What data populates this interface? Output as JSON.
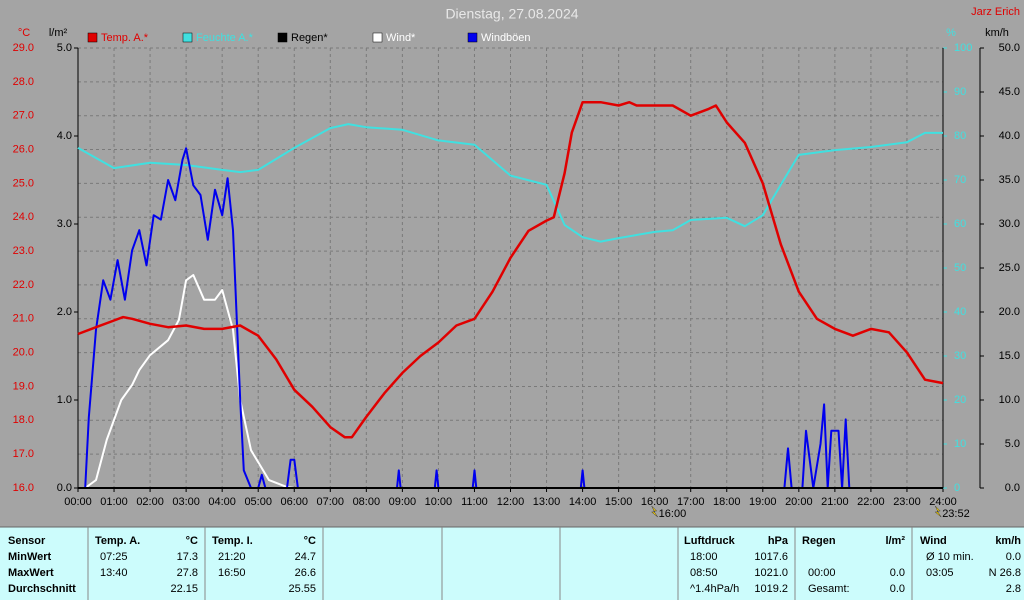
{
  "chart_data": {
    "type": "line",
    "title": "Dienstag, 27.08.2024",
    "author": "Jarz Erich",
    "ylabel": "°C",
    "y2label": "l/m²",
    "y3label": "%",
    "y4label": "km/h",
    "xlim": [
      0,
      24
    ],
    "xticks": [
      {
        "value": 0,
        "label": "00:00"
      },
      {
        "value": 1,
        "label": "01:00"
      },
      {
        "value": 2,
        "label": "02:00"
      },
      {
        "value": 3,
        "label": "03:00"
      },
      {
        "value": 4,
        "label": "04:00"
      },
      {
        "value": 5,
        "label": "05:00"
      },
      {
        "value": 6,
        "label": "06:00"
      },
      {
        "value": 7,
        "label": "07:00"
      },
      {
        "value": 8,
        "label": "08:00"
      },
      {
        "value": 9,
        "label": "09:00"
      },
      {
        "value": 10,
        "label": "10:00"
      },
      {
        "value": 11,
        "label": "11:00"
      },
      {
        "value": 12,
        "label": "12:00"
      },
      {
        "value": 13,
        "label": "13:00"
      },
      {
        "value": 14,
        "label": "14:00"
      },
      {
        "value": 15,
        "label": "15:00"
      },
      {
        "value": 16,
        "label": "16:00"
      },
      {
        "value": 17,
        "label": "17:00"
      },
      {
        "value": 18,
        "label": "18:00"
      },
      {
        "value": 19,
        "label": "19:00"
      },
      {
        "value": 20,
        "label": "20:00"
      },
      {
        "value": 21,
        "label": "21:00"
      },
      {
        "value": 22,
        "label": "22:00"
      },
      {
        "value": 23,
        "label": "23:00"
      },
      {
        "value": 24,
        "label": "24:00"
      }
    ],
    "ylim": [
      16,
      29
    ],
    "yticks": [
      {
        "value": 16,
        "label": "16.0"
      },
      {
        "value": 17,
        "label": "17.0"
      },
      {
        "value": 18,
        "label": "18.0"
      },
      {
        "value": 19,
        "label": "19.0"
      },
      {
        "value": 20,
        "label": "20.0"
      },
      {
        "value": 21,
        "label": "21.0"
      },
      {
        "value": 22,
        "label": "22.0"
      },
      {
        "value": 23,
        "label": "23.0"
      },
      {
        "value": 24,
        "label": "24.0"
      },
      {
        "value": 25,
        "label": "25.0"
      },
      {
        "value": 26,
        "label": "26.0"
      },
      {
        "value": 27,
        "label": "27.0"
      },
      {
        "value": 28,
        "label": "28.0"
      },
      {
        "value": 29,
        "label": "29.0"
      }
    ],
    "y2lim": [
      0,
      5
    ],
    "y2ticks": [
      {
        "value": 0,
        "label": "0.0"
      },
      {
        "value": 1,
        "label": "1.0"
      },
      {
        "value": 2,
        "label": "2.0"
      },
      {
        "value": 3,
        "label": "3.0"
      },
      {
        "value": 4,
        "label": "4.0"
      },
      {
        "value": 5,
        "label": "5.0"
      }
    ],
    "y3lim": [
      0,
      100
    ],
    "y3ticks": [
      0,
      10,
      20,
      30,
      40,
      50,
      60,
      70,
      80,
      90,
      100
    ],
    "y4lim": [
      0,
      50
    ],
    "y4ticks": [
      {
        "value": 0,
        "label": "0.0"
      },
      {
        "value": 5,
        "label": "5.0"
      },
      {
        "value": 10,
        "label": "10.0"
      },
      {
        "value": 15,
        "label": "15.0"
      },
      {
        "value": 20,
        "label": "20.0"
      },
      {
        "value": 25,
        "label": "25.0"
      },
      {
        "value": 30,
        "label": "30.0"
      },
      {
        "value": 35,
        "label": "35.0"
      },
      {
        "value": 40,
        "label": "40.0"
      },
      {
        "value": 45,
        "label": "45.0"
      },
      {
        "value": 50,
        "label": "50.0"
      }
    ],
    "grid": true,
    "series": [
      {
        "name": "Temp. A.*",
        "color": "#e00000",
        "text_color": "#e00000",
        "axis": "y",
        "x": [
          0,
          0.5,
          1,
          1.25,
          1.5,
          2,
          2.5,
          3,
          3.5,
          4,
          4.5,
          5,
          5.5,
          6,
          6.5,
          7,
          7.4,
          7.6,
          8,
          8.5,
          9,
          9.5,
          10,
          10.5,
          11,
          11.5,
          12,
          12.5,
          13,
          13.2,
          13.5,
          13.7,
          14,
          14.5,
          15,
          15.3,
          15.5,
          16,
          16.5,
          17,
          17.5,
          17.7,
          18,
          18.5,
          19,
          19.5,
          20,
          20.5,
          21,
          21.5,
          22,
          22.5,
          23,
          23.5,
          24
        ],
        "values": [
          20.55,
          20.75,
          20.95,
          21.05,
          21,
          20.85,
          20.75,
          20.8,
          20.7,
          20.7,
          20.8,
          20.5,
          19.8,
          18.9,
          18.4,
          17.8,
          17.5,
          17.5,
          18.1,
          18.8,
          19.4,
          19.9,
          20.3,
          20.8,
          21,
          21.8,
          22.8,
          23.6,
          23.9,
          24,
          25.3,
          26.5,
          27.4,
          27.4,
          27.3,
          27.4,
          27.3,
          27.3,
          27.3,
          27,
          27.2,
          27.3,
          26.8,
          26.2,
          25,
          23.2,
          21.8,
          21,
          20.7,
          20.5,
          20.7,
          20.6,
          20,
          19.2,
          19.1
        ]
      },
      {
        "name": "Feuchte A.*",
        "color": "#40e0e0",
        "text_color": "#40e0e0",
        "axis": "y3",
        "x": [
          0,
          1,
          2,
          3,
          4,
          4.5,
          5,
          6,
          7,
          7.5,
          8,
          9,
          10,
          11,
          12,
          13,
          13.5,
          14,
          14.5,
          15,
          16,
          16.5,
          17,
          18,
          18.5,
          19,
          19.5,
          20,
          21,
          22,
          23,
          23.5,
          24
        ],
        "values": [
          77.3,
          72.7,
          73.9,
          73.4,
          72.3,
          71.8,
          72.3,
          77.3,
          81.8,
          82.7,
          82,
          81.4,
          79,
          78,
          71,
          68.9,
          59.8,
          57,
          56,
          56.8,
          58.2,
          58.6,
          60.9,
          61.4,
          59.5,
          62,
          68.9,
          75.7,
          76.8,
          77.5,
          78.6,
          80.7,
          80.7
        ]
      },
      {
        "name": "Regen*",
        "color": "#000000",
        "text_color": "#000000",
        "axis": "y2",
        "x": [
          0,
          24
        ],
        "values": [
          0,
          0
        ]
      },
      {
        "name": "Wind*",
        "color": "#ffffff",
        "text_color": "#ffffff",
        "axis": "y4",
        "x": [
          0.2,
          0.5,
          0.8,
          1.2,
          1.5,
          1.7,
          2,
          2.5,
          2.8,
          3,
          3.2,
          3.5,
          3.8,
          4,
          4.3,
          4.5,
          4.8,
          5.3,
          5.8,
          6
        ],
        "values": [
          0,
          0.9,
          5.5,
          10,
          11.7,
          13.4,
          15.1,
          16.8,
          19.1,
          23.6,
          24.2,
          21.4,
          21.4,
          22.5,
          18,
          10,
          4.3,
          0.9,
          0.1,
          0
        ]
      },
      {
        "name": "Windböen",
        "color": "#0000ee",
        "text_color": "#ffffff",
        "axis": "y4",
        "x": [
          0.2,
          0.3,
          0.5,
          0.7,
          0.9,
          1.1,
          1.3,
          1.5,
          1.7,
          1.9,
          2.1,
          2.3,
          2.5,
          2.7,
          2.9,
          3,
          3.2,
          3.4,
          3.6,
          3.8,
          4,
          4.15,
          4.3,
          4.5,
          4.6,
          4.8,
          5,
          5.1,
          5.2,
          5.8,
          5.9,
          6,
          6.1,
          8.85,
          8.9,
          8.95,
          9.9,
          9.95,
          10,
          10.95,
          11,
          11.05,
          13.95,
          14,
          14.05,
          19.6,
          19.7,
          19.8,
          20.1,
          20.2,
          20.4,
          20.6,
          20.7,
          20.8,
          20.9,
          21.1,
          21.2,
          21.3,
          21.4,
          21.5
        ],
        "values": [
          0,
          8,
          18,
          23.6,
          21.4,
          25.9,
          21.4,
          27,
          29.3,
          25.3,
          31,
          30.5,
          35,
          32.7,
          37.3,
          38.6,
          34.4,
          33.3,
          28.2,
          33.9,
          31,
          35.2,
          29.3,
          10,
          2,
          0,
          0,
          1.5,
          0,
          0,
          3.2,
          3.2,
          0,
          0,
          2,
          0,
          0,
          2,
          0,
          0,
          2,
          0,
          0,
          2,
          0,
          0,
          4.5,
          0,
          0,
          6.5,
          0,
          5,
          9.5,
          0,
          6.5,
          6.5,
          0,
          7.8,
          0,
          0
        ]
      }
    ],
    "annotations": [
      {
        "x": 16,
        "label": "16:00"
      },
      {
        "x": 23.8667,
        "label": "23:52"
      }
    ]
  },
  "table": {
    "sensor": "Sensor",
    "row_labels": [
      "MinWert",
      "MaxWert",
      "Durchschnitt"
    ],
    "groups": [
      {
        "name": "Temp. A.",
        "unit": "°C",
        "rows": [
          {
            "time": "07:25",
            "value": "17.3"
          },
          {
            "time": "13:40",
            "value": "27.8"
          },
          {
            "value": "22.15"
          }
        ]
      },
      {
        "name": "Temp. I.",
        "unit": "°C",
        "rows": [
          {
            "time": "21:20",
            "value": "24.7"
          },
          {
            "time": "16:50",
            "value": "26.6"
          },
          {
            "value": "25.55"
          }
        ]
      },
      {
        "name": "Luftdruck",
        "unit": "hPa",
        "rows": [
          {
            "time": "18:00",
            "value": "1017.6"
          },
          {
            "time": "08:50",
            "value": "1021.0"
          },
          {
            "time": "^1.4hPa/h",
            "value": "1019.2"
          }
        ]
      },
      {
        "name": "Regen",
        "unit": "l/m²",
        "rows": [
          null,
          {
            "time": "00:00",
            "value": "0.0"
          },
          {
            "time": "Gesamt:",
            "value": "0.0"
          }
        ]
      },
      {
        "name": "Wind",
        "unit": "km/h",
        "rows": [
          {
            "time": "Ø 10 min.",
            "value": "0.0"
          },
          {
            "time": "03:05",
            "value": "N 26.8"
          },
          {
            "value": "2.8"
          }
        ]
      }
    ]
  }
}
